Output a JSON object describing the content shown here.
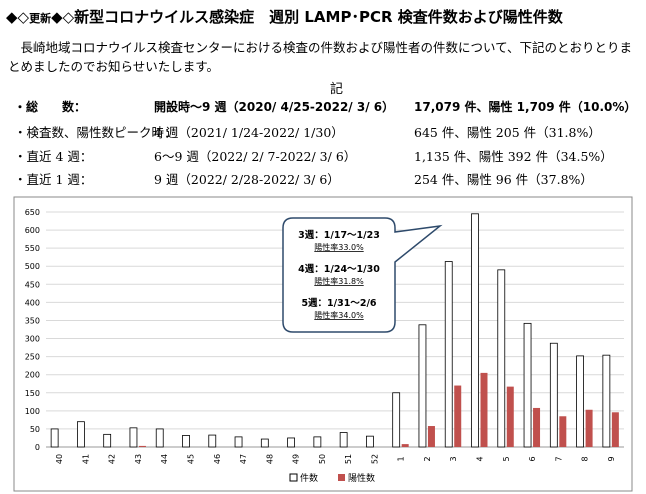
{
  "header": {
    "mark": "◆◇",
    "badge": "更新",
    "title": "◆◇新型コロナウイルス感染症　週別 LAMP･PCR 検査件数および陽性件数"
  },
  "intro": "長崎地域コロナウイルス検査センターにおける検査の件数および陽性者の件数について、下記のとおりとりまとめましたのでお知らせいたします。",
  "ki": "記",
  "summary": [
    {
      "label": "・総　　数：",
      "period": "開設時〜9 週（2020/ 4/25-2022/ 3/ 6）",
      "result": "17,079 件、陽性 1,709 件（10.0%）"
    },
    {
      "label": "・検査数、陽性数ピーク時：",
      "period": "4 週（2021/ 1/24-2022/ 1/30）",
      "result": "645 件、陽性 205 件（31.8%）"
    },
    {
      "label": "・直近 4 週：",
      "period": "6〜9 週（2022/ 2/ 7-2022/ 3/ 6）",
      "result": "1,135 件、陽性 392 件（34.5%）"
    },
    {
      "label": "・直近 1 週：",
      "period": "9 週（2022/ 2/28-2022/ 3/ 6）",
      "result": "254 件、陽性 96 件（37.8%）"
    }
  ],
  "chart_data": {
    "type": "bar",
    "categories": [
      "40",
      "41",
      "42",
      "43",
      "44",
      "45",
      "46",
      "47",
      "48",
      "49",
      "50",
      "51",
      "52",
      "1",
      "2",
      "3",
      "4",
      "5",
      "6",
      "7",
      "8",
      "9"
    ],
    "series": [
      {
        "name": "件数",
        "color": "#ffffff",
        "values": [
          50,
          70,
          35,
          53,
          50,
          32,
          33,
          28,
          22,
          25,
          28,
          40,
          30,
          150,
          338,
          513,
          645,
          490,
          342,
          287,
          252,
          254
        ]
      },
      {
        "name": "陽性数",
        "color": "#c0504d",
        "values": [
          0,
          0,
          0,
          3,
          0,
          0,
          0,
          0,
          0,
          0,
          0,
          0,
          0,
          8,
          58,
          170,
          205,
          167,
          108,
          85,
          103,
          96
        ]
      }
    ],
    "ylim": [
      0,
      650
    ],
    "yticks": [
      0,
      50,
      100,
      150,
      200,
      250,
      300,
      350,
      400,
      450,
      500,
      550,
      600,
      650
    ],
    "grid": true,
    "legend": "bottom",
    "annotations": [
      {
        "title": "3週：1/17〜1/23",
        "rate": "陽性率33.0%"
      },
      {
        "title": "4週：1/24〜1/30",
        "rate": "陽性率31.8%"
      },
      {
        "title": "5週：1/31〜2/6",
        "rate": "陽性率34.0%"
      }
    ]
  }
}
